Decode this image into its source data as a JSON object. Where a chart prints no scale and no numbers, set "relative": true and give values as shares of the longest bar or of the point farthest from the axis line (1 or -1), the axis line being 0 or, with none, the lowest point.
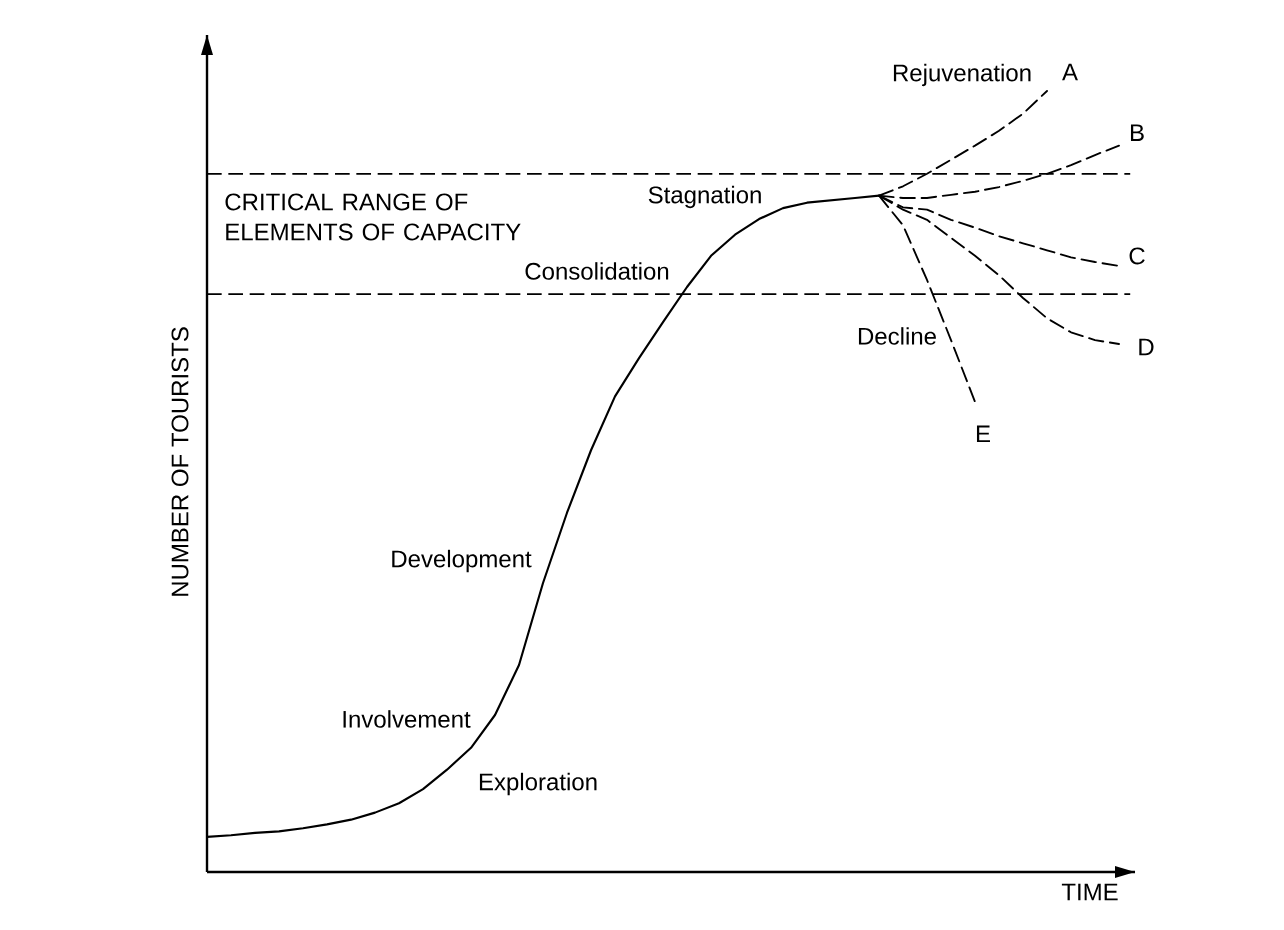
{
  "chart_data": {
    "type": "line",
    "relative": true,
    "xlabel": "TIME",
    "ylabel": "NUMBER OF TOURISTS",
    "categories": [
      null,
      null,
      null,
      null,
      null,
      null,
      null,
      null,
      null,
      null,
      null,
      null,
      null,
      null,
      null,
      null,
      null,
      null,
      null,
      null,
      null,
      null,
      null,
      null,
      null,
      null,
      null,
      null,
      null,
      null,
      null,
      null,
      null,
      null,
      null,
      null,
      null,
      null,
      null
    ],
    "series": [
      {
        "color": "#000000",
        "line_style": "solid",
        "values": [
          0.045,
          0.047,
          0.05,
          0.052,
          0.056,
          0.061,
          0.067,
          0.076,
          0.088,
          0.106,
          0.131,
          0.159,
          0.201,
          0.265,
          0.37,
          0.46,
          0.54,
          0.609,
          0.658,
          0.704,
          0.749,
          0.789,
          0.816,
          0.836,
          0.85,
          0.857,
          0.86,
          0.863,
          0.866,
          null,
          null,
          null,
          null,
          null,
          null,
          null,
          null,
          null,
          null
        ]
      },
      {
        "name": "A",
        "color": "#000000",
        "line_style": "dashed",
        "values": [
          null,
          null,
          null,
          null,
          null,
          null,
          null,
          null,
          null,
          null,
          null,
          null,
          null,
          null,
          null,
          null,
          null,
          null,
          null,
          null,
          null,
          null,
          null,
          null,
          null,
          null,
          null,
          null,
          0.866,
          0.878,
          0.894,
          0.912,
          0.93,
          0.949,
          0.971,
          1,
          null,
          null,
          null
        ]
      },
      {
        "name": "B",
        "color": "#000000",
        "line_style": "dashed",
        "values": [
          null,
          null,
          null,
          null,
          null,
          null,
          null,
          null,
          null,
          null,
          null,
          null,
          null,
          null,
          null,
          null,
          null,
          null,
          null,
          null,
          null,
          null,
          null,
          null,
          null,
          null,
          null,
          null,
          0.866,
          0.863,
          0.863,
          0.867,
          0.871,
          0.877,
          0.885,
          0.894,
          0.905,
          0.918,
          0.93
        ]
      },
      {
        "name": "C",
        "color": "#000000",
        "line_style": "dashed",
        "values": [
          null,
          null,
          null,
          null,
          null,
          null,
          null,
          null,
          null,
          null,
          null,
          null,
          null,
          null,
          null,
          null,
          null,
          null,
          null,
          null,
          null,
          null,
          null,
          null,
          null,
          null,
          null,
          null,
          0.866,
          0.851,
          0.848,
          0.835,
          0.825,
          0.814,
          0.805,
          0.796,
          0.787,
          0.781,
          0.776
        ]
      },
      {
        "name": "D",
        "color": "#000000",
        "line_style": "dashed",
        "values": [
          null,
          null,
          null,
          null,
          null,
          null,
          null,
          null,
          null,
          null,
          null,
          null,
          null,
          null,
          null,
          null,
          null,
          null,
          null,
          null,
          null,
          null,
          null,
          null,
          null,
          null,
          null,
          null,
          0.866,
          0.848,
          0.835,
          0.812,
          0.789,
          0.764,
          0.735,
          0.709,
          0.691,
          0.681,
          0.676
        ]
      },
      {
        "name": "E",
        "color": "#000000",
        "line_style": "dashed",
        "values": [
          null,
          null,
          null,
          null,
          null,
          null,
          null,
          null,
          null,
          null,
          null,
          null,
          null,
          null,
          null,
          null,
          null,
          null,
          null,
          null,
          null,
          null,
          null,
          null,
          null,
          null,
          null,
          null,
          0.866,
          0.828,
          0.758,
          0.681,
          0.602,
          null,
          null,
          null,
          null,
          null,
          null
        ]
      }
    ],
    "ref_lines": [
      {
        "axis": "y",
        "value": 0.894,
        "color": "#000000",
        "line_style": "dashed"
      },
      {
        "axis": "y",
        "value": 0.74,
        "color": "#000000",
        "line_style": "dashed"
      }
    ],
    "annotations": [
      "Rejuvenation",
      "Stagnation",
      "Consolidation",
      "Development",
      "Involvement",
      "Exploration",
      "Decline",
      "CRITICAL RANGE OF ELEMENTS OF CAPACITY"
    ]
  }
}
